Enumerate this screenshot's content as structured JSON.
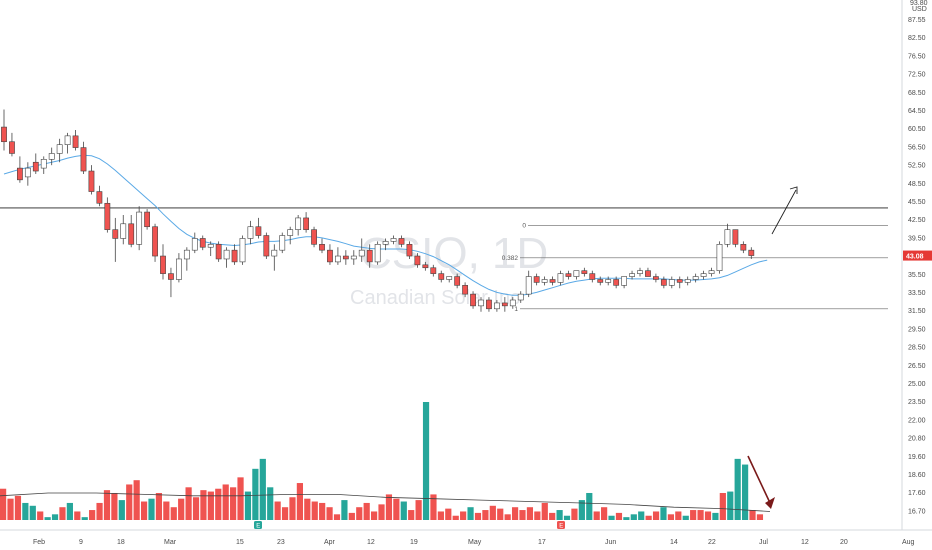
{
  "colors": {
    "up": "#26a69a",
    "down": "#ef5350",
    "up_candle_fill": "#ffffff",
    "candle_border": "#444444",
    "ma_line": "#5aa9e6",
    "volume_ma": "#444444",
    "last_price_bg": "#e53935"
  },
  "chart_data": {
    "type": "candlestick",
    "watermark": {
      "symbol": "CSIQ, 1D",
      "name": "Canadian Solar Inc"
    },
    "price_axis": {
      "currency_label": "USD",
      "top_partial_label": "93.80",
      "ticks": [
        "87.55",
        "82.50",
        "76.50",
        "72.50",
        "68.50",
        "64.50",
        "60.50",
        "56.50",
        "52.50",
        "48.50",
        "45.50",
        "42.50",
        "39.50",
        "37.50",
        "35.50",
        "33.50",
        "31.50",
        "29.50",
        "28.50",
        "26.50",
        "25.00",
        "23.50",
        "22.00",
        "20.80",
        "19.60",
        "18.60",
        "17.60",
        "16.70"
      ],
      "last_price": "43.08"
    },
    "x_axis": {
      "labels": [
        "Feb",
        "9",
        "18",
        "Mar",
        "15",
        "23",
        "Apr",
        "12",
        "19",
        "May",
        "17",
        "Jun",
        "14",
        "22",
        "Jul",
        "12",
        "20",
        "Aug"
      ]
    },
    "ylim": [
      33.5,
      90.5
    ],
    "candles": [
      {
        "o": 65,
        "h": 68,
        "l": 61,
        "c": 62.5
      },
      {
        "o": 62.5,
        "h": 64,
        "l": 60,
        "c": 60.5
      },
      {
        "o": 58,
        "h": 60,
        "l": 55.5,
        "c": 56
      },
      {
        "o": 56.5,
        "h": 59,
        "l": 55,
        "c": 58
      },
      {
        "o": 59,
        "h": 60.5,
        "l": 57,
        "c": 57.5
      },
      {
        "o": 58,
        "h": 60,
        "l": 57,
        "c": 59.5
      },
      {
        "o": 59.5,
        "h": 61.5,
        "l": 58.5,
        "c": 60.5
      },
      {
        "o": 60.5,
        "h": 63,
        "l": 59,
        "c": 62
      },
      {
        "o": 62,
        "h": 64,
        "l": 60.5,
        "c": 63.5
      },
      {
        "o": 63.5,
        "h": 64.5,
        "l": 61,
        "c": 61.5
      },
      {
        "o": 61.5,
        "h": 62.5,
        "l": 57,
        "c": 57.5
      },
      {
        "o": 57.5,
        "h": 58.5,
        "l": 53.5,
        "c": 54
      },
      {
        "o": 54,
        "h": 55,
        "l": 51.5,
        "c": 52
      },
      {
        "o": 52,
        "h": 53,
        "l": 47,
        "c": 47.5
      },
      {
        "o": 47.5,
        "h": 49.5,
        "l": 42,
        "c": 46
      },
      {
        "o": 46,
        "h": 50,
        "l": 45,
        "c": 48.5
      },
      {
        "o": 48.5,
        "h": 50,
        "l": 44.5,
        "c": 45
      },
      {
        "o": 45,
        "h": 51.5,
        "l": 44,
        "c": 50.5
      },
      {
        "o": 50.5,
        "h": 51,
        "l": 47.5,
        "c": 48
      },
      {
        "o": 48,
        "h": 48.5,
        "l": 42,
        "c": 43
      },
      {
        "o": 43,
        "h": 45,
        "l": 39,
        "c": 40
      },
      {
        "o": 40,
        "h": 41,
        "l": 36,
        "c": 39
      },
      {
        "o": 39,
        "h": 43.5,
        "l": 38.5,
        "c": 42.5
      },
      {
        "o": 42.5,
        "h": 44.5,
        "l": 40.5,
        "c": 44
      },
      {
        "o": 44,
        "h": 47,
        "l": 43.5,
        "c": 46
      },
      {
        "o": 46,
        "h": 46.5,
        "l": 44,
        "c": 44.5
      },
      {
        "o": 44.5,
        "h": 45.5,
        "l": 43,
        "c": 45
      },
      {
        "o": 45,
        "h": 45.5,
        "l": 42,
        "c": 42.5
      },
      {
        "o": 42.5,
        "h": 44.5,
        "l": 41,
        "c": 44
      },
      {
        "o": 44,
        "h": 45,
        "l": 41.5,
        "c": 42
      },
      {
        "o": 42,
        "h": 46.5,
        "l": 41.5,
        "c": 46
      },
      {
        "o": 46,
        "h": 49,
        "l": 45,
        "c": 48
      },
      {
        "o": 48,
        "h": 49.5,
        "l": 46,
        "c": 46.5
      },
      {
        "o": 46.5,
        "h": 47,
        "l": 42.5,
        "c": 43
      },
      {
        "o": 43,
        "h": 45,
        "l": 40.5,
        "c": 44
      },
      {
        "o": 44,
        "h": 47,
        "l": 43.5,
        "c": 46.5
      },
      {
        "o": 46.5,
        "h": 48,
        "l": 45,
        "c": 47.5
      },
      {
        "o": 47.5,
        "h": 50,
        "l": 46.5,
        "c": 49.5
      },
      {
        "o": 49.5,
        "h": 50.5,
        "l": 47,
        "c": 47.5
      },
      {
        "o": 47.5,
        "h": 48,
        "l": 44.5,
        "c": 45
      },
      {
        "o": 45,
        "h": 46,
        "l": 43.5,
        "c": 44
      },
      {
        "o": 44,
        "h": 45,
        "l": 41.5,
        "c": 42
      },
      {
        "o": 42,
        "h": 44.5,
        "l": 41.5,
        "c": 43
      },
      {
        "o": 43,
        "h": 44,
        "l": 41.5,
        "c": 42.5
      },
      {
        "o": 42.5,
        "h": 44,
        "l": 41.5,
        "c": 43
      },
      {
        "o": 43,
        "h": 46,
        "l": 42,
        "c": 44
      },
      {
        "o": 44,
        "h": 45,
        "l": 41,
        "c": 42
      },
      {
        "o": 42,
        "h": 45.5,
        "l": 41.5,
        "c": 45
      },
      {
        "o": 45,
        "h": 46,
        "l": 44,
        "c": 45.5
      },
      {
        "o": 45.5,
        "h": 46.5,
        "l": 45,
        "c": 46
      },
      {
        "o": 46,
        "h": 46.5,
        "l": 44.5,
        "c": 45
      },
      {
        "o": 45,
        "h": 45.5,
        "l": 42.5,
        "c": 43
      },
      {
        "o": 43,
        "h": 43.5,
        "l": 41,
        "c": 41.5
      },
      {
        "o": 41.5,
        "h": 42,
        "l": 40.5,
        "c": 41
      },
      {
        "o": 41,
        "h": 41.5,
        "l": 39.5,
        "c": 40
      },
      {
        "o": 40,
        "h": 40.5,
        "l": 38.5,
        "c": 39
      },
      {
        "o": 39,
        "h": 39.5,
        "l": 38.5,
        "c": 39.5
      },
      {
        "o": 39.5,
        "h": 40,
        "l": 37.5,
        "c": 38
      },
      {
        "o": 38,
        "h": 38.5,
        "l": 36,
        "c": 36.5
      },
      {
        "o": 36.5,
        "h": 37,
        "l": 34,
        "c": 34.5
      },
      {
        "o": 34.5,
        "h": 36,
        "l": 33.5,
        "c": 35.5
      },
      {
        "o": 35.5,
        "h": 36,
        "l": 33.5,
        "c": 34
      },
      {
        "o": 34,
        "h": 35.5,
        "l": 33.5,
        "c": 35
      },
      {
        "o": 35,
        "h": 36,
        "l": 33.5,
        "c": 34.5
      },
      {
        "o": 34.5,
        "h": 36,
        "l": 34,
        "c": 35.5
      },
      {
        "o": 35.5,
        "h": 37,
        "l": 35,
        "c": 36.5
      },
      {
        "o": 36.5,
        "h": 40.5,
        "l": 36,
        "c": 39.5
      },
      {
        "o": 39.5,
        "h": 40,
        "l": 38,
        "c": 38.5
      },
      {
        "o": 38.5,
        "h": 39.5,
        "l": 38,
        "c": 39
      },
      {
        "o": 39,
        "h": 39.5,
        "l": 38,
        "c": 38.5
      },
      {
        "o": 38.5,
        "h": 40.5,
        "l": 38,
        "c": 40
      },
      {
        "o": 40,
        "h": 40.5,
        "l": 39,
        "c": 39.5
      },
      {
        "o": 39.5,
        "h": 40.5,
        "l": 39,
        "c": 40.5
      },
      {
        "o": 40.5,
        "h": 41,
        "l": 39.5,
        "c": 40
      },
      {
        "o": 40,
        "h": 40.5,
        "l": 38.5,
        "c": 39
      },
      {
        "o": 39,
        "h": 39.5,
        "l": 38,
        "c": 38.5
      },
      {
        "o": 38.5,
        "h": 39.5,
        "l": 38,
        "c": 39
      },
      {
        "o": 39,
        "h": 39.5,
        "l": 37.5,
        "c": 38
      },
      {
        "o": 38,
        "h": 39.5,
        "l": 37.5,
        "c": 39.5
      },
      {
        "o": 39.5,
        "h": 40.5,
        "l": 39,
        "c": 40
      },
      {
        "o": 40,
        "h": 41,
        "l": 39.5,
        "c": 40.5
      },
      {
        "o": 40.5,
        "h": 41,
        "l": 39.5,
        "c": 39.5
      },
      {
        "o": 39.5,
        "h": 40,
        "l": 38.5,
        "c": 39
      },
      {
        "o": 39,
        "h": 39.5,
        "l": 37.5,
        "c": 38
      },
      {
        "o": 38,
        "h": 39.5,
        "l": 37.5,
        "c": 39
      },
      {
        "o": 39,
        "h": 39.5,
        "l": 37.5,
        "c": 38.5
      },
      {
        "o": 38.5,
        "h": 39.5,
        "l": 38,
        "c": 39
      },
      {
        "o": 39,
        "h": 40,
        "l": 38.5,
        "c": 39.5
      },
      {
        "o": 39.5,
        "h": 40.5,
        "l": 39,
        "c": 40
      },
      {
        "o": 40,
        "h": 41,
        "l": 39.5,
        "c": 40.5
      },
      {
        "o": 40.5,
        "h": 45.5,
        "l": 40,
        "c": 45
      },
      {
        "o": 45,
        "h": 48.5,
        "l": 44.5,
        "c": 47.5
      },
      {
        "o": 47.5,
        "h": 47.5,
        "l": 44.5,
        "c": 45
      },
      {
        "o": 45,
        "h": 45.5,
        "l": 43.5,
        "c": 44
      },
      {
        "o": 44,
        "h": 44.5,
        "l": 42.5,
        "c": 43.08
      }
    ],
    "moving_average": [
      57,
      57.4,
      57.8,
      58.1,
      58.4,
      58.7,
      59,
      59.3,
      59.7,
      60,
      60.2,
      60.1,
      59.6,
      58.7,
      57.6,
      56.4,
      55.2,
      54,
      52.8,
      51.6,
      50.2,
      48.9,
      47.7,
      46.7,
      46,
      45.5,
      45.2,
      45,
      44.9,
      44.8,
      44.9,
      45.1,
      45.4,
      45.5,
      45.5,
      45.6,
      45.8,
      46.1,
      46.3,
      46.3,
      46.1,
      45.8,
      45.5,
      45.1,
      44.7,
      44.5,
      44.3,
      44.2,
      44.2,
      44.2,
      44.2,
      44.1,
      43.8,
      43.4,
      42.9,
      42.2,
      41.5,
      40.6,
      39.7,
      38.8,
      38,
      37.3,
      36.8,
      36.5,
      36.3,
      36.3,
      36.5,
      36.8,
      37.2,
      37.6,
      38,
      38.4,
      38.7,
      38.9,
      39.1,
      39.2,
      39.2,
      39.2,
      39.2,
      39.1,
      39.1,
      39.1,
      39.1,
      39.1,
      39,
      38.9,
      38.9,
      38.9,
      39,
      39.1,
      39.3,
      39.7,
      40.3,
      40.9,
      41.5,
      42,
      42.3
    ],
    "volume_bars": [
      {
        "v": 18.9,
        "up": false
      },
      {
        "v": 18.2,
        "up": false
      },
      {
        "v": 18.4,
        "up": false
      },
      {
        "v": 17.9,
        "up": true
      },
      {
        "v": 17.7,
        "up": true
      },
      {
        "v": 17.3,
        "up": false
      },
      {
        "v": 16.9,
        "up": true
      },
      {
        "v": 17.1,
        "up": true
      },
      {
        "v": 17.6,
        "up": false
      },
      {
        "v": 17.9,
        "up": true
      },
      {
        "v": 17.3,
        "up": false
      },
      {
        "v": 16.9,
        "up": true
      },
      {
        "v": 17.4,
        "up": false
      },
      {
        "v": 17.9,
        "up": false
      },
      {
        "v": 18.8,
        "up": false
      },
      {
        "v": 18.6,
        "up": false
      },
      {
        "v": 18.1,
        "up": true
      },
      {
        "v": 19.2,
        "up": false
      },
      {
        "v": 19.5,
        "up": false
      },
      {
        "v": 18.0,
        "up": false
      },
      {
        "v": 18.2,
        "up": true
      },
      {
        "v": 18.6,
        "up": false
      },
      {
        "v": 18.0,
        "up": false
      },
      {
        "v": 17.6,
        "up": false
      },
      {
        "v": 18.2,
        "up": false
      },
      {
        "v": 19.0,
        "up": false
      },
      {
        "v": 18.3,
        "up": false
      },
      {
        "v": 18.8,
        "up": false
      },
      {
        "v": 18.7,
        "up": false
      },
      {
        "v": 18.9,
        "up": false
      },
      {
        "v": 19.2,
        "up": false
      },
      {
        "v": 19.0,
        "up": false
      },
      {
        "v": 19.7,
        "up": false
      },
      {
        "v": 18.7,
        "up": true
      },
      {
        "v": 20.3,
        "up": true
      },
      {
        "v": 21.0,
        "up": true
      },
      {
        "v": 19.0,
        "up": true
      },
      {
        "v": 18.0,
        "up": false
      },
      {
        "v": 17.6,
        "up": false
      },
      {
        "v": 18.3,
        "up": false
      },
      {
        "v": 19.3,
        "up": false
      },
      {
        "v": 18.2,
        "up": false
      },
      {
        "v": 18.0,
        "up": false
      },
      {
        "v": 17.9,
        "up": false
      },
      {
        "v": 17.6,
        "up": false
      },
      {
        "v": 17.1,
        "up": false
      },
      {
        "v": 18.1,
        "up": true
      },
      {
        "v": 17.2,
        "up": false
      },
      {
        "v": 17.6,
        "up": false
      },
      {
        "v": 17.9,
        "up": false
      },
      {
        "v": 17.3,
        "up": false
      },
      {
        "v": 17.8,
        "up": false
      },
      {
        "v": 18.5,
        "up": false
      },
      {
        "v": 18.2,
        "up": false
      },
      {
        "v": 18.0,
        "up": true
      },
      {
        "v": 17.4,
        "up": false
      },
      {
        "v": 18.1,
        "up": false
      },
      {
        "v": 25.0,
        "up": true
      },
      {
        "v": 18.5,
        "up": false
      },
      {
        "v": 17.3,
        "up": false
      },
      {
        "v": 17.5,
        "up": false
      },
      {
        "v": 17.0,
        "up": false
      },
      {
        "v": 17.3,
        "up": false
      },
      {
        "v": 17.6,
        "up": true
      },
      {
        "v": 17.2,
        "up": false
      },
      {
        "v": 17.4,
        "up": false
      },
      {
        "v": 17.7,
        "up": false
      },
      {
        "v": 17.5,
        "up": false
      },
      {
        "v": 17.1,
        "up": false
      },
      {
        "v": 17.6,
        "up": false
      },
      {
        "v": 17.4,
        "up": false
      },
      {
        "v": 17.6,
        "up": false
      },
      {
        "v": 17.3,
        "up": false
      },
      {
        "v": 17.9,
        "up": false
      },
      {
        "v": 17.2,
        "up": false
      },
      {
        "v": 17.4,
        "up": true
      },
      {
        "v": 17.0,
        "up": true
      },
      {
        "v": 17.5,
        "up": false
      },
      {
        "v": 18.1,
        "up": true
      },
      {
        "v": 18.6,
        "up": true
      },
      {
        "v": 17.3,
        "up": false
      },
      {
        "v": 17.6,
        "up": false
      },
      {
        "v": 17.0,
        "up": true
      },
      {
        "v": 17.2,
        "up": false
      },
      {
        "v": 16.9,
        "up": true
      },
      {
        "v": 17.1,
        "up": true
      },
      {
        "v": 17.3,
        "up": true
      },
      {
        "v": 17.0,
        "up": false
      },
      {
        "v": 17.3,
        "up": false
      },
      {
        "v": 17.6,
        "up": true
      },
      {
        "v": 17.1,
        "up": false
      },
      {
        "v": 17.3,
        "up": false
      },
      {
        "v": 17.0,
        "up": true
      },
      {
        "v": 17.4,
        "up": false
      },
      {
        "v": 17.4,
        "up": false
      },
      {
        "v": 17.3,
        "up": false
      },
      {
        "v": 17.2,
        "up": true
      },
      {
        "v": 18.6,
        "up": false
      },
      {
        "v": 18.7,
        "up": true
      },
      {
        "v": 21.0,
        "up": true
      },
      {
        "v": 20.6,
        "up": true
      },
      {
        "v": 17.4,
        "up": false
      },
      {
        "v": 17.1,
        "up": false
      },
      {
        "v": 16.7,
        "up": false
      }
    ],
    "volume_ma": [
      18.4,
      18.6,
      18.6,
      18.5,
      18.4,
      18.4,
      18.5,
      18.5,
      18.3,
      18.2,
      18.1,
      18.0,
      17.9,
      17.8,
      17.6,
      17.5,
      17.3
    ],
    "horizontal_line": 51.2,
    "fibonacci": {
      "levels": [
        "0",
        "0.382",
        "1"
      ],
      "values": [
        48.2,
        42.7,
        34.0
      ]
    },
    "events": [
      {
        "label": "E",
        "bar": "~Mar 19"
      },
      {
        "label": "E",
        "bar": "~May 19"
      }
    ]
  }
}
